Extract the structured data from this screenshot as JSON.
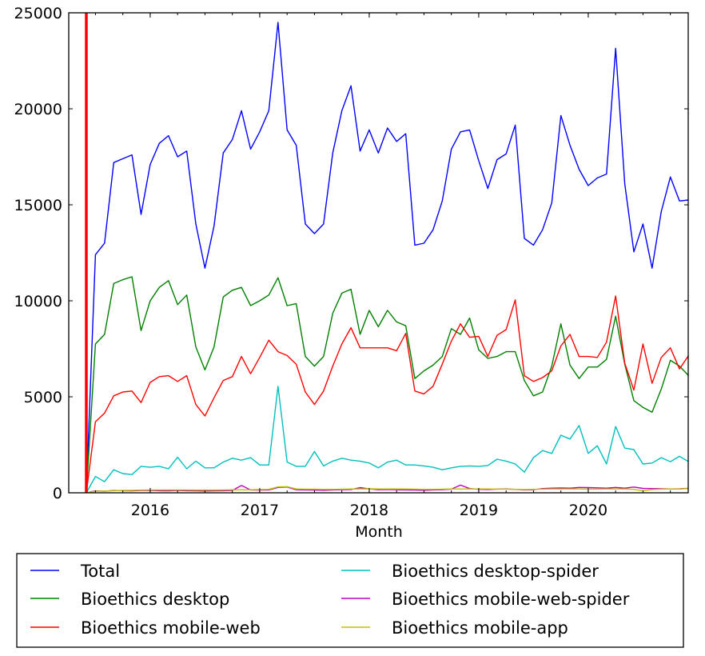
{
  "chart_data": {
    "type": "line",
    "title": "",
    "xlabel": "Month",
    "ylabel": "",
    "ylim": [
      0,
      25000
    ],
    "x_start": "2015-06",
    "x_end": "2020-12",
    "x_ticks": [
      "2016",
      "2017",
      "2018",
      "2019",
      "2020"
    ],
    "y_ticks": [
      "0",
      "5000",
      "10000",
      "15000",
      "20000",
      "25000"
    ],
    "y_tick_values": [
      0,
      5000,
      10000,
      15000,
      20000,
      25000
    ],
    "grid": false,
    "legend_position": "bottom",
    "marker_line": {
      "x": "2015-06",
      "color": "#ff0000"
    },
    "series": [
      {
        "name": "Total",
        "color": "#0000ff",
        "values": [
          0,
          12400,
          13000,
          17200,
          17400,
          17600,
          14500,
          17100,
          18200,
          18600,
          17500,
          17800,
          14000,
          11700,
          13900,
          17700,
          18400,
          19900,
          17900,
          18800,
          19900,
          24500,
          18900,
          18100,
          14000,
          13500,
          14000,
          17700,
          19900,
          21200,
          17800,
          18900,
          17700,
          19000,
          18300,
          18700,
          12900,
          13000,
          13700,
          15200,
          17900,
          18800,
          18900,
          17300,
          15850,
          17350,
          17650,
          19150,
          13250,
          12900,
          13700,
          15100,
          19650,
          18100,
          16850,
          16000,
          16400,
          16600,
          23150,
          16100,
          12550,
          14000,
          11700,
          14650,
          16450,
          15200,
          15250
        ]
      },
      {
        "name": "Bioethics desktop",
        "color": "#008000",
        "values": [
          0,
          7750,
          8250,
          10900,
          11100,
          11250,
          8450,
          10000,
          10700,
          11050,
          9800,
          10300,
          7600,
          6400,
          7600,
          10200,
          10550,
          10700,
          9750,
          10000,
          10300,
          11200,
          9750,
          9850,
          7100,
          6600,
          7100,
          9350,
          10400,
          10600,
          8250,
          9500,
          8650,
          9500,
          8900,
          8700,
          5950,
          6350,
          6650,
          7100,
          8550,
          8250,
          9100,
          7450,
          7000,
          7100,
          7350,
          7350,
          5850,
          5050,
          5250,
          6600,
          8800,
          6650,
          5950,
          6550,
          6550,
          6950,
          9200,
          6700,
          4800,
          4450,
          4200,
          5400,
          6900,
          6600,
          6100
        ]
      },
      {
        "name": "Bioethics mobile-web",
        "color": "#ff0000",
        "values": [
          0,
          3700,
          4150,
          5050,
          5250,
          5300,
          4700,
          5750,
          6050,
          6100,
          5800,
          6100,
          4600,
          4000,
          4950,
          5850,
          6050,
          7100,
          6200,
          7050,
          7950,
          7350,
          7150,
          6700,
          5250,
          4600,
          5300,
          6600,
          7750,
          8600,
          7550,
          7550,
          7550,
          7550,
          7400,
          8300,
          5300,
          5150,
          5550,
          6700,
          7900,
          8800,
          8100,
          8150,
          7100,
          8200,
          8500,
          10050,
          6100,
          5800,
          6000,
          6350,
          7650,
          8250,
          7100,
          7100,
          7050,
          7850,
          10250,
          6750,
          5350,
          7750,
          5700,
          7050,
          7550,
          6450,
          7150
        ]
      },
      {
        "name": "Bioethics desktop-spider",
        "color": "#00bfbf",
        "values": [
          0,
          850,
          580,
          1200,
          1000,
          950,
          1380,
          1330,
          1380,
          1250,
          1850,
          1250,
          1650,
          1300,
          1300,
          1600,
          1800,
          1700,
          1830,
          1450,
          1450,
          5550,
          1600,
          1380,
          1380,
          2150,
          1400,
          1650,
          1800,
          1700,
          1650,
          1550,
          1300,
          1600,
          1700,
          1450,
          1450,
          1400,
          1330,
          1200,
          1300,
          1380,
          1400,
          1380,
          1420,
          1750,
          1650,
          1500,
          1080,
          1830,
          2200,
          2050,
          3000,
          2800,
          3500,
          2050,
          2450,
          1500,
          3450,
          2330,
          2250,
          1500,
          1550,
          1830,
          1620,
          1900,
          1620
        ]
      },
      {
        "name": "Bioethics mobile-web-spider",
        "color": "#bf00bf",
        "values": [
          0,
          100,
          80,
          120,
          110,
          100,
          120,
          130,
          110,
          100,
          120,
          110,
          100,
          90,
          100,
          110,
          120,
          380,
          150,
          140,
          150,
          280,
          300,
          160,
          150,
          140,
          130,
          150,
          160,
          170,
          270,
          200,
          160,
          170,
          160,
          150,
          140,
          130,
          150,
          160,
          190,
          400,
          220,
          180,
          170,
          190,
          200,
          180,
          150,
          160,
          220,
          240,
          250,
          240,
          280,
          270,
          260,
          240,
          280,
          240,
          300,
          230,
          220,
          210,
          200,
          210,
          230
        ]
      },
      {
        "name": "Bioethics mobile-app",
        "color": "#bfbf00",
        "values": [
          0,
          80,
          90,
          110,
          120,
          130,
          140,
          150,
          150,
          150,
          150,
          150,
          140,
          140,
          140,
          150,
          160,
          160,
          160,
          170,
          180,
          310,
          320,
          200,
          190,
          190,
          180,
          180,
          190,
          200,
          200,
          210,
          200,
          200,
          200,
          200,
          190,
          180,
          180,
          190,
          200,
          200,
          200,
          200,
          200,
          190,
          190,
          180,
          170,
          180,
          190,
          200,
          200,
          200,
          200,
          190,
          190,
          200,
          200,
          200,
          180,
          110,
          170,
          190,
          200,
          200,
          220
        ]
      }
    ]
  }
}
